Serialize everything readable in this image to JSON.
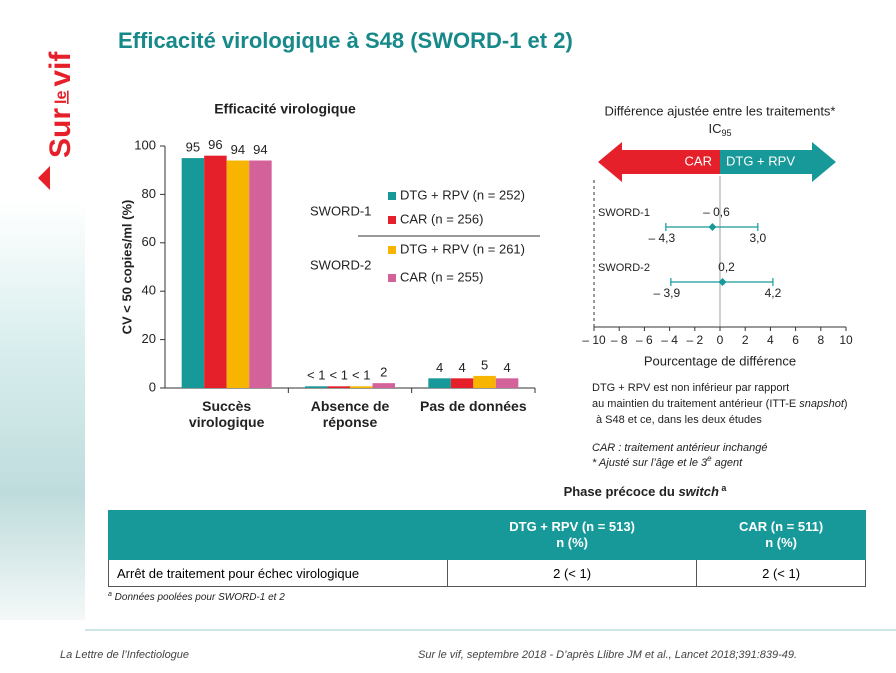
{
  "header": {
    "title": "Efficacité virologique à S48 (SWORD-1 et 2)"
  },
  "logo": {
    "parts": [
      "Sur",
      "le",
      "vif"
    ]
  },
  "chart_data": [
    {
      "type": "bar",
      "title": "Efficacité virologique",
      "y_label": "CV < 50 copies/ml (%)",
      "categories": [
        "Succès virologique",
        "Absence de réponse",
        "Pas de données"
      ],
      "ylim": [
        0,
        100
      ],
      "yticks": [
        0,
        20,
        40,
        60,
        80,
        100
      ],
      "grid": false,
      "series": [
        {
          "name": "DTG + RPV (n = 252)",
          "color": "#17999a",
          "values": [
            95,
            0.7,
            4
          ],
          "value_labels": [
            "95",
            "< 1",
            "4"
          ]
        },
        {
          "name": "CAR (n = 256)",
          "color": "#e5202a",
          "values": [
            96,
            0.7,
            4
          ],
          "value_labels": [
            "96",
            "< 1",
            "4"
          ]
        },
        {
          "name": "DTG + RPV (n = 261)",
          "color": "#f7b500",
          "values": [
            94,
            0.7,
            5
          ],
          "value_labels": [
            "94",
            "< 1",
            "5"
          ]
        },
        {
          "name": "CAR (n = 255)",
          "color": "#d3619a",
          "values": [
            94,
            2,
            4
          ],
          "value_labels": [
            "94",
            "2",
            "4"
          ]
        }
      ],
      "legend_groups": [
        {
          "label": "SWORD-1",
          "series": [
            0,
            1
          ]
        },
        {
          "label": "SWORD-2",
          "series": [
            2,
            3
          ]
        }
      ]
    },
    {
      "type": "forest",
      "title": "Différence ajustée entre les traitements*",
      "subtitle": "IC",
      "subtitle_sub": "95",
      "x_label": "Pourcentage de différence",
      "arrows": [
        {
          "label": "CAR",
          "color": "#e5202a"
        },
        {
          "label": "DTG + RPV",
          "color": "#17999a"
        }
      ],
      "xlim": [
        -10,
        10
      ],
      "xticks": [
        {
          "value": -10,
          "label": "– 10"
        },
        {
          "value": -8,
          "label": "– 8"
        },
        {
          "value": -6,
          "label": "– 6"
        },
        {
          "value": -4,
          "label": "– 4"
        },
        {
          "value": -2,
          "label": "– 2"
        },
        0,
        2,
        4,
        6,
        8,
        10
      ],
      "margin": -10,
      "color": "#17999a",
      "rows": [
        {
          "name": "SWORD-1",
          "estimate": -0.6,
          "low": -4.3,
          "high": 3.0,
          "estimate_label": "– 0,6",
          "low_label": "– 4,3",
          "high_label": "3,0"
        },
        {
          "name": "SWORD-2",
          "estimate": 0.2,
          "low": -3.9,
          "high": 4.2,
          "estimate_label": "0,2",
          "low_label": "– 3,9",
          "high_label": "4,2"
        }
      ]
    }
  ],
  "notes": {
    "conclusion": [
      "DTG + RPV est non inférieur par rapport",
      "au maintien du traitement antérieur (ITT-E ",
      "snapshot",
      ")",
      "à S48 et ce, dans les deux études"
    ],
    "car": "CAR : traitement antérieur inchangé",
    "adjusted": [
      "* Ajusté sur l’âge et le 3",
      "e",
      " agent"
    ]
  },
  "table": {
    "caption": [
      "Phase précoce du ",
      "switch",
      " a"
    ],
    "columns": [
      {
        "name": "DTG + RPV (n = 513)",
        "unit": "n (%)"
      },
      {
        "name": "CAR (n = 511)",
        "unit": "n (%)"
      }
    ],
    "rows": [
      [
        "Arrêt de traitement pour échec virologique",
        "2 (< 1)",
        "2 (< 1)"
      ]
    ],
    "footnote": [
      "a",
      " Données poolées pour SWORD-1 et 2"
    ]
  },
  "footer": {
    "left": "La Lettre de l’Infectiologue",
    "right": "Sur le vif, septembre 2018 - D’après Llibre JM et al., Lancet 2018;391:839-49."
  }
}
